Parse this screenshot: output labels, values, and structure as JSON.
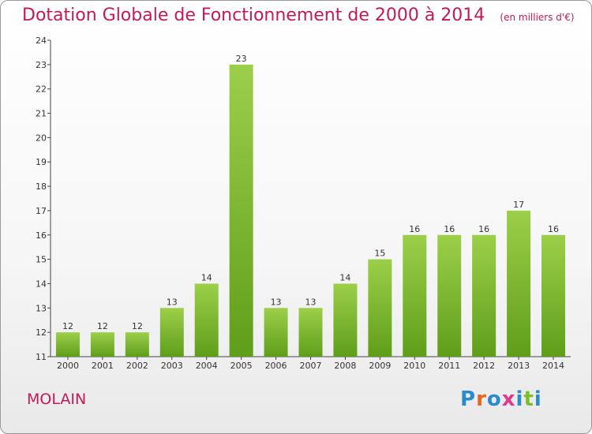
{
  "header": {
    "title": "Dotation Globale de Fonctionnement de 2000 à 2014",
    "subtitle": "(en milliers d'€)"
  },
  "footer": {
    "commune": "MOLAIN",
    "logo_text": "Proxiti"
  },
  "colors": {
    "accent": "#c2195b",
    "bar_top": "#9ccf4a",
    "bar_bottom": "#5f9e1a"
  },
  "chart_data": {
    "type": "bar",
    "categories": [
      "2000",
      "2001",
      "2002",
      "2003",
      "2004",
      "2005",
      "2006",
      "2007",
      "2008",
      "2009",
      "2010",
      "2011",
      "2012",
      "2013",
      "2014"
    ],
    "values": [
      12,
      12,
      12,
      13,
      14,
      23,
      13,
      13,
      14,
      15,
      16,
      16,
      16,
      17,
      16
    ],
    "ylim": [
      11,
      24
    ],
    "yticks": [
      11,
      12,
      13,
      14,
      15,
      16,
      17,
      18,
      19,
      20,
      21,
      22,
      23,
      24
    ],
    "data_labels": true,
    "grid": false,
    "legend": "none"
  }
}
